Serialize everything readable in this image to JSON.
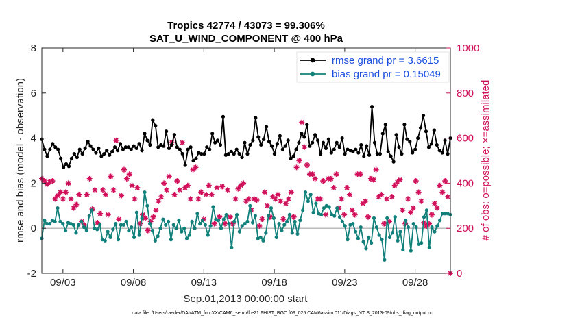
{
  "chart_data": {
    "type": "line",
    "title": "Tropics 42774 / 43073 = 99.306%",
    "subtitle": "SAT_U_WIND_COMPONENT @ 400 hPa",
    "xlabel": "Sep.01,2013 00:00:00 start",
    "ylabel": "rmse and bias (model - observation)",
    "ylabel_right": "# of obs: o=possible; ×=assimilated",
    "footnote": "data file: /Users/raeder/DAI/ATM_forcXX/CAM6_setup/f.e21.FHIST_BGC.f09_025.CAM6assim.011/Diags_NTrS_2013-09/obs_diag_output.nc",
    "xlim": [
      1.5,
      30.5
    ],
    "ylim": [
      -2,
      8
    ],
    "ylim_right": [
      0,
      1000
    ],
    "xticks": [
      3,
      8,
      13,
      18,
      23,
      28
    ],
    "xtick_labels": [
      "09/03",
      "09/08",
      "09/13",
      "09/18",
      "09/23",
      "09/28"
    ],
    "yticks": [
      -2,
      0,
      2,
      4,
      6,
      8
    ],
    "ytick_labels": [
      "-2",
      "0",
      "2",
      "4",
      "6",
      "8"
    ],
    "yticks_right": [
      0,
      200,
      400,
      600,
      800,
      1000
    ],
    "ytick_labels_right": [
      "0",
      "200",
      "400",
      "600",
      "800",
      "1000"
    ],
    "colors": {
      "rmse": "#000000",
      "bias": "#12807a",
      "obs": "#d0105a",
      "legend_text": "#1a4fe0",
      "zero_line": "#bbbbbb"
    },
    "legend": {
      "position": "top-right",
      "rmse_label": "rmse grand pr = 3.6615",
      "bias_label": "bias grand pr = 0.15049"
    },
    "series": [
      {
        "name": "rmse",
        "values": [
          3.95,
          3.5,
          3.2,
          3.5,
          3.75,
          3.6,
          3.5,
          3.1,
          2.7,
          2.85,
          2.75,
          3.1,
          3.3,
          3.15,
          3.5,
          3.3,
          3.55,
          3.85,
          3.65,
          3.5,
          3.35,
          3.55,
          3.2,
          3.3,
          3.45,
          3.25,
          3.4,
          3.6,
          3.45,
          3.75,
          3.5,
          3.6,
          3.6,
          3.5,
          3.65,
          3.55,
          3.75,
          3.45,
          4.2,
          3.9,
          3.7,
          4.8,
          4.55,
          3.6,
          3.7,
          3.65,
          4.3,
          3.55,
          3.7,
          4.15,
          3.6,
          3.5,
          3.3,
          2.8,
          3.5,
          3.6,
          3.0,
          3.1,
          3.35,
          3.3,
          3.3,
          3.6,
          3.5,
          4.2,
          3.8,
          3.9,
          3.7,
          4.95,
          3.25,
          3.3,
          3.4,
          3.3,
          3.5,
          3.3,
          3.15,
          3.8,
          3.3,
          3.7,
          3.9,
          4.9,
          4.05,
          3.7,
          3.95,
          4.5,
          3.85,
          3.65,
          3.3,
          3.75,
          4.1,
          3.5,
          3.65,
          3.9,
          3.1,
          3.2,
          3.5,
          3.8,
          4.2,
          4.05,
          4.6,
          3.65,
          3.8,
          4.15,
          3.9,
          3.3,
          3.8,
          3.55,
          3.95,
          3.35,
          3.5,
          3.8,
          3.6,
          4.0,
          3.3,
          3.5,
          3.45,
          3.4,
          3.5,
          3.35,
          3.7,
          3.2,
          3.65,
          3.25,
          5.4,
          3.8,
          3.3,
          3.3,
          4.2,
          4.6,
          3.4,
          3.2,
          2.95,
          4.15,
          3.6,
          3.3,
          4.6,
          3.95,
          3.85,
          3.35,
          3.5,
          4.0,
          4.45,
          5.0,
          4.3,
          3.6,
          3.75,
          4.35,
          3.7,
          3.45,
          3.35,
          3.9,
          3.3,
          4.0
        ]
      },
      {
        "name": "bias",
        "values": [
          -0.45,
          0.35,
          0.2,
          0.2,
          0.35,
          0.3,
          0.9,
          0.3,
          0.2,
          -0.1,
          0.25,
          0.2,
          0.15,
          -0.2,
          0.15,
          0.3,
          0.05,
          -0.1,
          0.55,
          0.8,
          0.0,
          -0.05,
          0.15,
          -0.5,
          -0.55,
          -0.15,
          -0.4,
          -0.05,
          0.2,
          -0.5,
          0.15,
          0.15,
          0.3,
          -0.1,
          0.05,
          -0.4,
          0.7,
          -0.3,
          0.45,
          1.6,
          1.0,
          0.2,
          -0.1,
          -0.55,
          -0.35,
          0.0,
          0.4,
          0.15,
          0.3,
          -0.5,
          0.15,
          0.0,
          0.35,
          -0.15,
          0.0,
          -0.45,
          -0.3,
          0.3,
          0.0,
          0.65,
          0.2,
          0.35,
          0.15,
          -0.3,
          0.1,
          0.95,
          0.4,
          0.35,
          0.0,
          0.4,
          0.6,
          0.2,
          -0.85,
          0.3,
          0.6,
          -0.15,
          0.1,
          0.2,
          0.3,
          1.0,
          0.25,
          0.55,
          -0.45,
          -0.4,
          -0.55,
          -0.2,
          0.55,
          0.9,
          0.45,
          -0.4,
          0.2,
          -0.1,
          0.15,
          0.3,
          0.6,
          -0.2,
          0.3,
          -0.25,
          0.35,
          0.8,
          1.6,
          1.2,
          1.5,
          0.7,
          1.1,
          0.65,
          0.6,
          0.9,
          1.0,
          0.95,
          0.6,
          0.55,
          0.9,
          0.5,
          0.3,
          0.1,
          -0.5,
          0.15,
          0.2,
          -0.15,
          -0.45,
          0.05,
          -0.6,
          -0.9,
          -0.4,
          -0.65,
          0.45,
          0.05,
          -0.3,
          -0.5,
          -1.4,
          0.45,
          -0.4,
          -0.2,
          0.5,
          -0.55,
          -0.15,
          -0.95,
          0.35,
          0.05,
          -1.0,
          0.2,
          0.05,
          -0.7,
          -0.65,
          0.5,
          0.8,
          -0.85,
          0.05,
          -0.15,
          0.1,
          0.35,
          0.65,
          0.65,
          0.65,
          0.6
        ]
      },
      {
        "name": "obs_assimilated",
        "values": [
          420,
          410,
          395,
          405,
          410,
          330,
          345,
          360,
          330,
          360,
          400,
          330,
          290,
          305,
          350,
          230,
          215,
          350,
          420,
          285,
          370,
          225,
          265,
          370,
          350,
          260,
          430,
          370,
          590,
          240,
          345,
          460,
          420,
          440,
          390,
          330,
          380,
          220,
          260,
          245,
          190,
          230,
          250,
          280,
          320,
          340,
          400,
          370,
          430,
          580,
          350,
          410,
          370,
          580,
          380,
          390,
          330,
          460,
          470,
          330,
          360,
          240,
          350,
          390,
          350,
          220,
          380,
          250,
          385,
          220,
          370,
          250,
          220,
          330,
          375,
          390,
          400,
          320,
          330,
          280,
          330,
          325,
          210,
          240,
          360,
          300,
          250,
          340,
          330,
          350,
          320,
          240,
          310,
          330,
          360,
          250,
          470,
          500,
          670,
          560,
          480,
          440,
          440,
          420,
          330,
          330,
          410,
          260,
          420,
          420,
          380,
          440,
          290,
          330,
          260,
          380,
          350,
          280,
          260,
          440,
          440,
          310,
          320,
          250,
          420,
          415,
          460,
          340,
          350,
          220,
          330,
          230,
          340,
          390,
          405,
          415,
          280,
          220,
          330,
          270,
          290,
          410,
          360,
          320,
          225,
          210,
          220,
          260,
          310,
          290,
          390,
          360,
          410,
          340,
          0
        ]
      }
    ]
  }
}
